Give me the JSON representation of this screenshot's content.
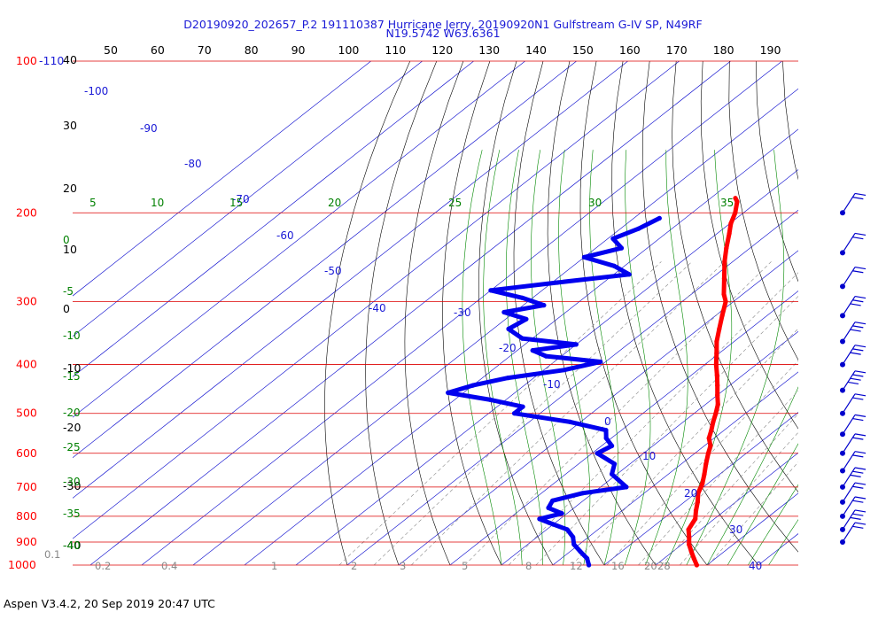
{
  "header": {
    "title_line1": "D20190920_202657_P.2 191110387 Hurricane Jerry, 20190920N1 Gulfstream G-IV SP, N49RF",
    "title_line2": "N19.5742 W63.6361"
  },
  "footer": {
    "text": "Aspen V3.4.2, 20 Sep 2019  20:47 UTC"
  },
  "chart_data": {
    "type": "skew-t",
    "pressure_axis": {
      "unit": "hPa",
      "min": 100,
      "max": 1000,
      "scale": "log",
      "labels": [
        {
          "p": 100,
          "text": "100"
        },
        {
          "p": 200,
          "text": "200"
        },
        {
          "p": 300,
          "text": "300"
        },
        {
          "p": 400,
          "text": "400"
        },
        {
          "p": 500,
          "text": "500"
        },
        {
          "p": 600,
          "text": "600"
        },
        {
          "p": 700,
          "text": "700"
        },
        {
          "p": 800,
          "text": "800"
        },
        {
          "p": 900,
          "text": "900"
        },
        {
          "p": 1000,
          "text": "1000"
        }
      ],
      "corner_label": "-110"
    },
    "top_scale": {
      "values": [
        "50",
        "60",
        "70",
        "80",
        "90",
        "100",
        "110",
        "120",
        "130",
        "140",
        "150",
        "160",
        "170",
        "180",
        "190"
      ]
    },
    "height_labels": [
      "40",
      "30",
      "20",
      "10",
      "0",
      "-10",
      "-20",
      "-30",
      "-40"
    ],
    "isotherm_labels": [
      "-100",
      "-90",
      "-80",
      "-70",
      "-60",
      "-50",
      "-40",
      "-30",
      "-20",
      "-10",
      "0",
      "10",
      "20",
      "30",
      "40"
    ],
    "theta_e_labels": [
      "5",
      "10",
      "15",
      "20",
      "25",
      "30",
      "35"
    ],
    "left_scale_labels": [
      "0",
      "-5",
      "-10",
      "-15",
      "-20",
      "-25",
      "-30",
      "-35",
      "-40"
    ],
    "mixing_ratio_labels": [
      "0.1",
      "0.2",
      "0.4",
      "1",
      "2",
      "3",
      "5",
      "8",
      "12",
      "16",
      "20",
      "28"
    ],
    "series": [
      {
        "name": "Temperature",
        "color": "#ff0000",
        "unit": "°C",
        "points": [
          [
            187,
            -55.2
          ],
          [
            190,
            -54.0
          ],
          [
            200,
            -51.6
          ],
          [
            210,
            -49.8
          ],
          [
            220,
            -47.6
          ],
          [
            235,
            -44.6
          ],
          [
            250,
            -41.6
          ],
          [
            270,
            -37.5
          ],
          [
            290,
            -33.7
          ],
          [
            300,
            -31.5
          ],
          [
            320,
            -28.7
          ],
          [
            340,
            -26.0
          ],
          [
            360,
            -23.4
          ],
          [
            380,
            -20.5
          ],
          [
            400,
            -17.8
          ],
          [
            420,
            -15.0
          ],
          [
            440,
            -12.4
          ],
          [
            460,
            -10.0
          ],
          [
            480,
            -7.6
          ],
          [
            500,
            -5.8
          ],
          [
            520,
            -4.2
          ],
          [
            540,
            -2.5
          ],
          [
            560,
            -1.0
          ],
          [
            580,
            1.2
          ],
          [
            600,
            2.6
          ],
          [
            630,
            4.8
          ],
          [
            660,
            7.0
          ],
          [
            690,
            9.0
          ],
          [
            720,
            10.5
          ],
          [
            750,
            12.6
          ],
          [
            780,
            14.4
          ],
          [
            810,
            16.3
          ],
          [
            850,
            17.6
          ],
          [
            880,
            19.6
          ],
          [
            910,
            21.4
          ],
          [
            940,
            23.6
          ],
          [
            970,
            25.8
          ],
          [
            1000,
            28.0
          ]
        ]
      },
      {
        "name": "Dewpoint",
        "color": "#0000ee",
        "unit": "°C",
        "points": [
          [
            205,
            -65.0
          ],
          [
            215,
            -66.5
          ],
          [
            225,
            -69.0
          ],
          [
            235,
            -65.0
          ],
          [
            245,
            -70.0
          ],
          [
            255,
            -62.0
          ],
          [
            265,
            -57.0
          ],
          [
            275,
            -69.0
          ],
          [
            285,
            -80.0
          ],
          [
            295,
            -72.0
          ],
          [
            305,
            -66.0
          ],
          [
            315,
            -72.0
          ],
          [
            325,
            -66.0
          ],
          [
            340,
            -67.0
          ],
          [
            355,
            -62.0
          ],
          [
            365,
            -50.0
          ],
          [
            375,
            -57.0
          ],
          [
            385,
            -53.0
          ],
          [
            395,
            -41.0
          ],
          [
            410,
            -46.0
          ],
          [
            425,
            -55.0
          ],
          [
            440,
            -60.0
          ],
          [
            455,
            -63.0
          ],
          [
            470,
            -53.0
          ],
          [
            485,
            -45.0
          ],
          [
            500,
            -45.0
          ],
          [
            520,
            -32.0
          ],
          [
            540,
            -23.0
          ],
          [
            560,
            -21.0
          ],
          [
            580,
            -18.0
          ],
          [
            600,
            -19.0
          ],
          [
            630,
            -13.0
          ],
          [
            660,
            -11.0
          ],
          [
            700,
            -5.0
          ],
          [
            720,
            -12.0
          ],
          [
            745,
            -16.0
          ],
          [
            770,
            -15.0
          ],
          [
            790,
            -11.0
          ],
          [
            810,
            -14.0
          ],
          [
            830,
            -10.0
          ],
          [
            850,
            -6.0
          ],
          [
            880,
            -3.0
          ],
          [
            910,
            -1.0
          ],
          [
            940,
            2.0
          ],
          [
            970,
            5.0
          ],
          [
            1000,
            7.0
          ]
        ]
      }
    ],
    "wind_barbs": [
      {
        "p": 200,
        "speed_kt": 20
      },
      {
        "p": 240,
        "speed_kt": 15
      },
      {
        "p": 280,
        "speed_kt": 20
      },
      {
        "p": 320,
        "speed_kt": 25
      },
      {
        "p": 360,
        "speed_kt": 25
      },
      {
        "p": 400,
        "speed_kt": 30
      },
      {
        "p": 450,
        "speed_kt": 35
      },
      {
        "p": 500,
        "speed_kt": 15
      },
      {
        "p": 550,
        "speed_kt": 20
      },
      {
        "p": 600,
        "speed_kt": 20
      },
      {
        "p": 650,
        "speed_kt": 20
      },
      {
        "p": 700,
        "speed_kt": 25
      },
      {
        "p": 750,
        "speed_kt": 20
      },
      {
        "p": 800,
        "speed_kt": 20
      },
      {
        "p": 850,
        "speed_kt": 25
      },
      {
        "p": 900,
        "speed_kt": 20
      }
    ],
    "colors": {
      "isobar": "#dd0000",
      "isotherm": "#0000cc",
      "dry_adiabat": "#000000",
      "moist_adiabat": "#008800",
      "mixing_ratio": "#888888",
      "label_red": "#ff0000",
      "label_blue": "#1a1ad6",
      "label_green": "#008000"
    }
  }
}
